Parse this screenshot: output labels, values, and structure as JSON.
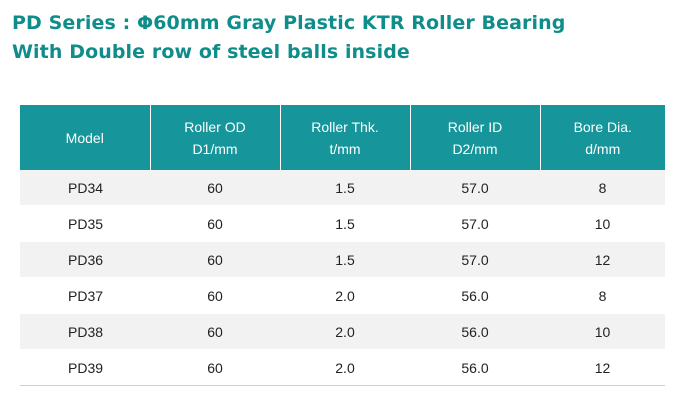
{
  "title": {
    "line1": "PD Series :  Φ60mm Gray Plastic KTR Roller Bearing",
    "line2": "With Double row of steel balls inside"
  },
  "colors": {
    "accent": "#16969a",
    "title": "#0f8d8a",
    "row_alt": "#f2f2f2"
  },
  "table": {
    "headers": [
      {
        "line1": "Model",
        "line2": ""
      },
      {
        "line1": "Roller  OD",
        "line2": "D1/mm"
      },
      {
        "line1": "Roller  Thk.",
        "line2": "t/mm"
      },
      {
        "line1": "Roller  ID",
        "line2": "D2/mm"
      },
      {
        "line1": "Bore Dia.",
        "line2": "d/mm"
      }
    ],
    "rows": [
      [
        "PD34",
        "60",
        "1.5",
        "57.0",
        "8"
      ],
      [
        "PD35",
        "60",
        "1.5",
        "57.0",
        "10"
      ],
      [
        "PD36",
        "60",
        "1.5",
        "57.0",
        "12"
      ],
      [
        "PD37",
        "60",
        "2.0",
        "56.0",
        "8"
      ],
      [
        "PD38",
        "60",
        "2.0",
        "56.0",
        "10"
      ],
      [
        "PD39",
        "60",
        "2.0",
        "56.0",
        "12"
      ]
    ]
  }
}
